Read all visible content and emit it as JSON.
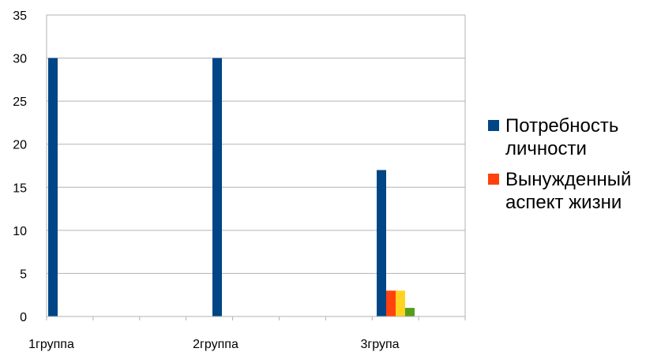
{
  "chart_data": {
    "type": "bar",
    "categories": [
      "1группа",
      "2группа",
      "3групa"
    ],
    "series": [
      {
        "name": "Потребность личности",
        "color": "#004586",
        "values": [
          30,
          30,
          17
        ]
      },
      {
        "name": "Вынужденный аспект жизни",
        "color": "#ff420e",
        "values": [
          0,
          0,
          3
        ]
      },
      {
        "name": "",
        "color": "#ffd320",
        "values": [
          0,
          0,
          3
        ]
      },
      {
        "name": "",
        "color": "#579d1c",
        "values": [
          0,
          0,
          1
        ]
      }
    ],
    "ylim": [
      0,
      35
    ],
    "yticks": [
      0,
      5,
      10,
      15,
      20,
      25,
      30,
      35
    ],
    "grid": true,
    "legend_placement": "right",
    "title": "",
    "xlabel": "",
    "ylabel": ""
  }
}
